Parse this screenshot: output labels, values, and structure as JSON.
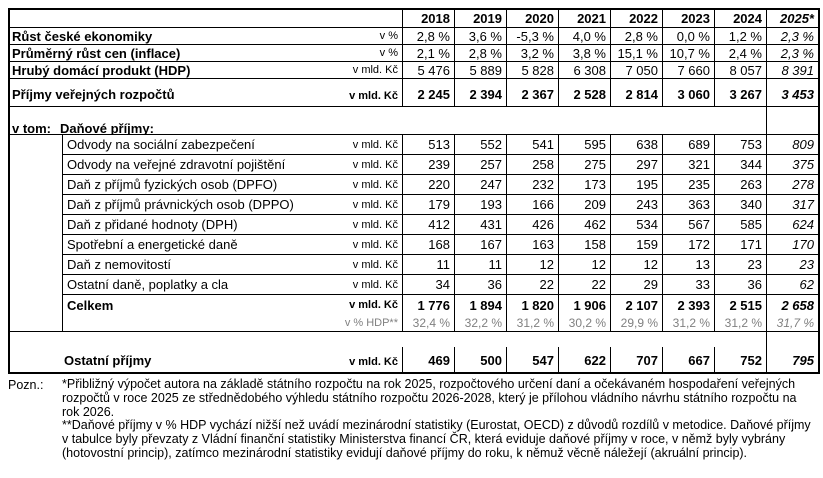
{
  "colors": {
    "border": "#000000",
    "muted_text": "#808080",
    "background": "#ffffff"
  },
  "header": {
    "years": [
      "2018",
      "2019",
      "2020",
      "2021",
      "2022",
      "2023",
      "2024",
      "2025*"
    ]
  },
  "rows": {
    "gdp_growth": {
      "label": "Růst české ekonomiky",
      "unit": "v %",
      "values": [
        "2,8 %",
        "3,6 %",
        "-5,3 %",
        "4,0 %",
        "2,8 %",
        "0,0 %",
        "1,2 %",
        "2,3 %"
      ]
    },
    "inflation": {
      "label": "Průměrný růst cen (inflace)",
      "unit": "v %",
      "values": [
        "2,1 %",
        "2,8 %",
        "3,2 %",
        "3,8 %",
        "15,1 %",
        "10,7 %",
        "2,4 %",
        "2,3 %"
      ]
    },
    "gdp": {
      "label": "Hrubý domácí produkt (HDP)",
      "unit": "v mld. Kč",
      "values": [
        "5 476",
        "5 889",
        "5 828",
        "6 308",
        "7 050",
        "7 660",
        "8 057",
        "8 391"
      ]
    },
    "public_revenues": {
      "label": "Příjmy veřejných rozpočtů",
      "unit": "v mld. Kč",
      "values": [
        "2 245",
        "2 394",
        "2 367",
        "2 528",
        "2 814",
        "3 060",
        "3 267",
        "3 453"
      ]
    },
    "tax_section": {
      "prefix": "v tom:",
      "label": "Daňové příjmy:"
    },
    "tax_items": [
      {
        "label": "Odvody na sociální zabezpečení",
        "unit": "v mld. Kč",
        "values": [
          "513",
          "552",
          "541",
          "595",
          "638",
          "689",
          "753",
          "809"
        ]
      },
      {
        "label": "Odvody na veřejné zdravotní pojištění",
        "unit": "v mld. Kč",
        "values": [
          "239",
          "257",
          "258",
          "275",
          "297",
          "321",
          "344",
          "375"
        ]
      },
      {
        "label": "Daň z příjmů fyzických osob (DPFO)",
        "unit": "v mld. Kč",
        "values": [
          "220",
          "247",
          "232",
          "173",
          "195",
          "235",
          "263",
          "278"
        ]
      },
      {
        "label": "Daň z příjmů právnických osob (DPPO)",
        "unit": "v mld. Kč",
        "values": [
          "179",
          "193",
          "166",
          "209",
          "243",
          "363",
          "340",
          "317"
        ]
      },
      {
        "label": "Daň z přidané hodnoty (DPH)",
        "unit": "v mld. Kč",
        "values": [
          "412",
          "431",
          "426",
          "462",
          "534",
          "567",
          "585",
          "624"
        ]
      },
      {
        "label": "Spotřební a energetické daně",
        "unit": "v mld. Kč",
        "values": [
          "168",
          "167",
          "163",
          "158",
          "159",
          "172",
          "171",
          "170"
        ]
      },
      {
        "label": "Daň z nemovitostí",
        "unit": "v mld. Kč",
        "values": [
          "11",
          "11",
          "12",
          "12",
          "12",
          "13",
          "23",
          "23"
        ]
      },
      {
        "label": "Ostatní daně, poplatky a cla",
        "unit": "v mld. Kč",
        "values": [
          "34",
          "36",
          "22",
          "22",
          "29",
          "33",
          "36",
          "62"
        ]
      }
    ],
    "total": {
      "label": "Celkem",
      "unit": "v mld. Kč",
      "values": [
        "1 776",
        "1 894",
        "1 820",
        "1 906",
        "2 107",
        "2 393",
        "2 515",
        "2 658"
      ]
    },
    "total_pct_gdp": {
      "unit": "v % HDP**",
      "values": [
        "32,4 %",
        "32,2 %",
        "31,2 %",
        "30,2 %",
        "29,9 %",
        "31,2 %",
        "31,2 %",
        "31,7 %"
      ]
    },
    "other_revenues": {
      "label": "Ostatní příjmy",
      "unit": "v mld. Kč",
      "values": [
        "469",
        "500",
        "547",
        "622",
        "707",
        "667",
        "752",
        "795"
      ]
    }
  },
  "footnote": {
    "label": "Pozn.:",
    "note1": "*Přibližný výpočet autora na základě státního rozpočtu na rok 2025, rozpočtového určení daní a očekávaném hospodaření veřejných rozpočtů v roce 2025 ze střednědobého výhledu státního rozpočtu 2026-2028, který je přílohou vládního návrhu státního rozpočtu na rok 2026.",
    "note2": "**Daňové příjmy v % HDP vychází nižší než uvádí mezinárodní statistiky (Eurostat, OECD) z důvodů rozdílů v metodice. Daňové příjmy v tabulce byly převzaty z Vládní finanční statistiky Ministerstva financí ČR, která eviduje daňové příjmy v roce, v němž byly vybrány (hotovostní princip), zatímco mezinárodní statistiky evidují daňové příjmy do roku, k němuž věcně náležejí (akruální princip)."
  }
}
